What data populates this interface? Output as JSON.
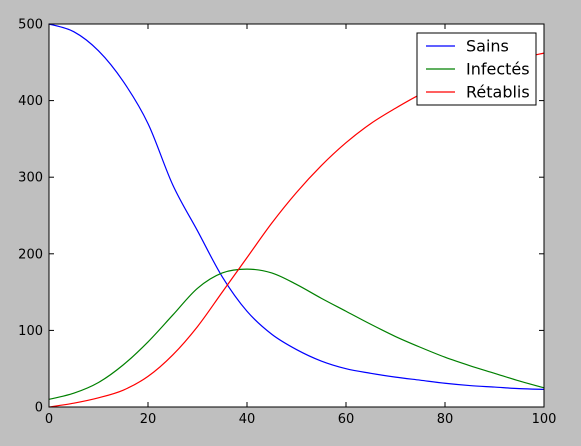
{
  "chart_data": {
    "type": "line",
    "title": "",
    "xlabel": "",
    "ylabel": "",
    "xlim": [
      0,
      100
    ],
    "ylim": [
      0,
      500
    ],
    "x_ticks": [
      0,
      20,
      40,
      60,
      80,
      100
    ],
    "y_ticks": [
      0,
      100,
      200,
      300,
      400,
      500
    ],
    "grid": false,
    "legend_position": "top-right",
    "x": [
      0,
      5,
      10,
      15,
      20,
      25,
      30,
      35,
      40,
      45,
      50,
      55,
      60,
      65,
      70,
      75,
      80,
      85,
      90,
      95,
      100
    ],
    "series": [
      {
        "name": "Sains",
        "color": "#0000ff",
        "values": [
          500,
          490,
          465,
          425,
          370,
          290,
          230,
          170,
          125,
          95,
          75,
          60,
          50,
          44,
          39,
          35,
          31,
          28,
          26,
          24,
          23
        ]
      },
      {
        "name": "Infectés",
        "color": "#008000",
        "values": [
          10,
          18,
          32,
          55,
          85,
          120,
          155,
          175,
          180,
          175,
          160,
          142,
          125,
          108,
          92,
          78,
          65,
          54,
          44,
          34,
          25
        ]
      },
      {
        "name": "Rétablis",
        "color": "#ff0000",
        "values": [
          0,
          5,
          12,
          22,
          40,
          68,
          105,
          150,
          195,
          240,
          280,
          315,
          345,
          370,
          390,
          408,
          422,
          435,
          446,
          455,
          462
        ]
      }
    ]
  }
}
